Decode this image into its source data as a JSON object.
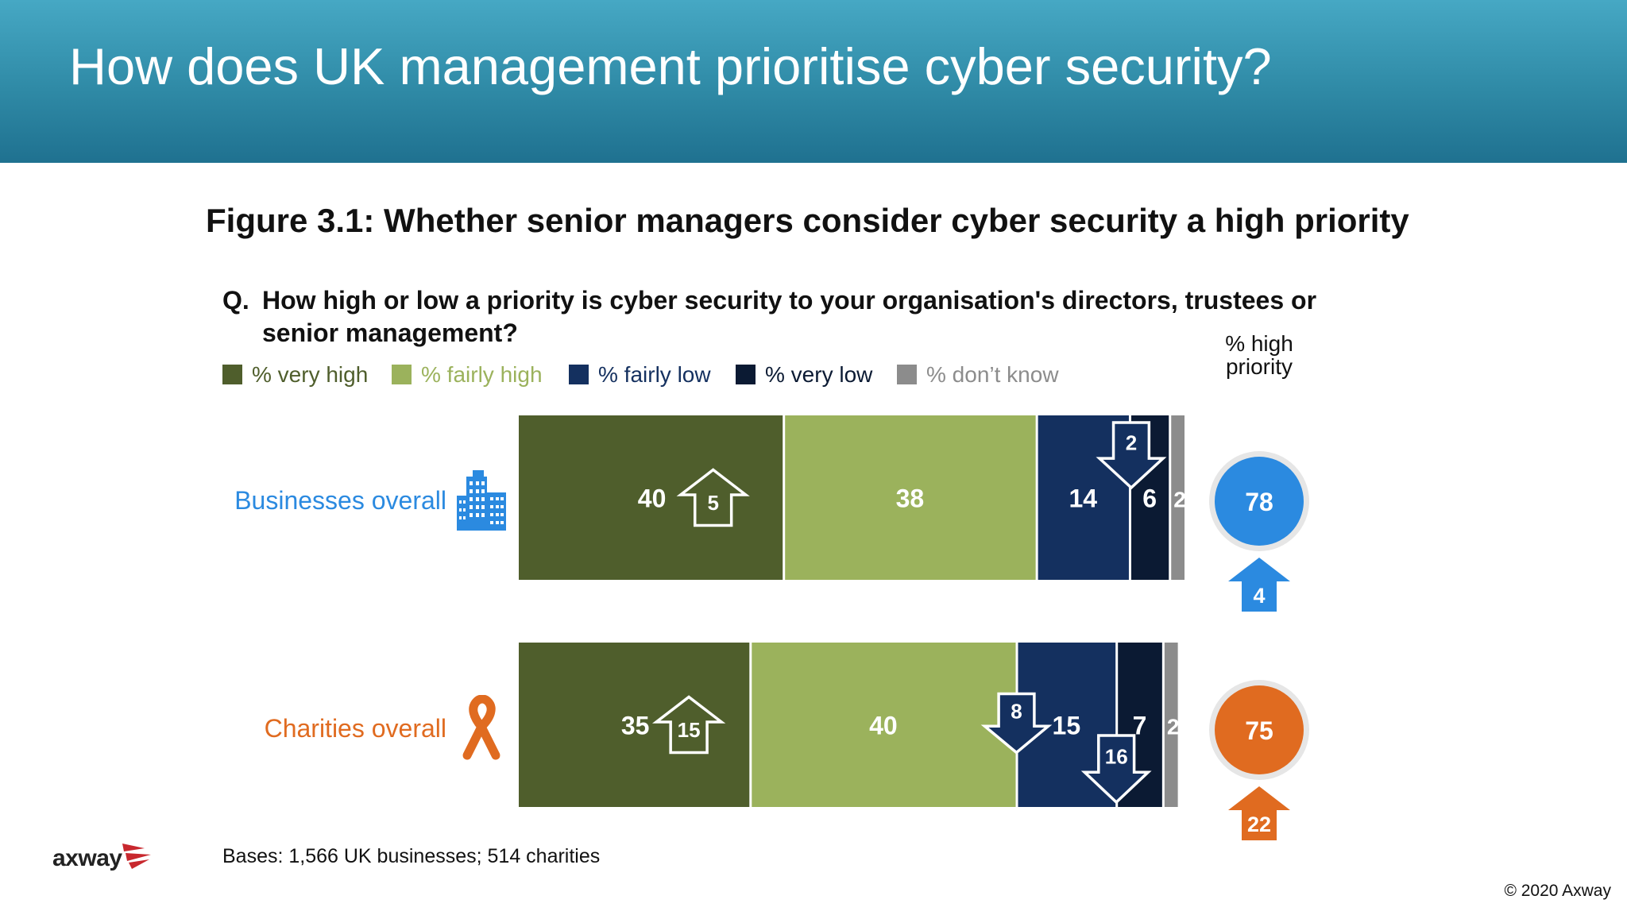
{
  "header": {
    "title": "How does UK management prioritise cyber security?"
  },
  "figure": {
    "title": "Figure 3.1: Whether senior managers consider cyber security a high priority",
    "question_marker": "Q.",
    "question": "How high or low a priority is cyber security to your organisation's directors, trustees or senior management?",
    "high_priority_header": "% high priority"
  },
  "colors": {
    "very_high": "#4f5e2c",
    "fairly_high": "#9bb25c",
    "fairly_low": "#14305f",
    "very_low": "#0b1a33",
    "dont_know": "#8c8c8c",
    "business_accent": "#2b8ae0",
    "charity_accent": "#e06b20"
  },
  "chart_data": {
    "type": "bar",
    "orientation": "horizontal-stacked",
    "xlim": [
      0,
      100
    ],
    "legend_position": "top",
    "series": [
      {
        "name": "% very high",
        "color": "#4f5e2c",
        "label_color": "#4f5e2c"
      },
      {
        "name": "% fairly high",
        "color": "#9bb25c",
        "label_color": "#9bb25c"
      },
      {
        "name": "% fairly low",
        "color": "#14305f",
        "label_color": "#14305f"
      },
      {
        "name": "% very low",
        "color": "#0b1a33",
        "label_color": "#0b1a33"
      },
      {
        "name": "% don’t know",
        "color": "#8c8c8c",
        "label_color": "#8c8c8c"
      }
    ],
    "categories": [
      {
        "label": "Businesses overall",
        "accent": "#2b8ae0",
        "values": [
          40,
          38,
          14,
          6,
          2
        ],
        "high_priority": 78,
        "high_priority_change": 4,
        "changes": [
          {
            "segment": 0,
            "direction": "up",
            "value": 5
          },
          {
            "segment": 3,
            "direction": "down",
            "value": 2
          }
        ]
      },
      {
        "label": "Charities overall",
        "accent": "#e06b20",
        "values": [
          35,
          40,
          15,
          7,
          2
        ],
        "high_priority": 75,
        "high_priority_change": 22,
        "changes": [
          {
            "segment": 0,
            "direction": "up",
            "value": 15
          },
          {
            "segment": 2,
            "direction": "down",
            "value": 8
          },
          {
            "segment": 3,
            "direction": "down",
            "value": 16
          }
        ]
      }
    ]
  },
  "footer": {
    "bases": "Bases: 1,566 UK businesses; 514 charities",
    "logo": "axway",
    "copyright": "© 2020 Axway"
  }
}
